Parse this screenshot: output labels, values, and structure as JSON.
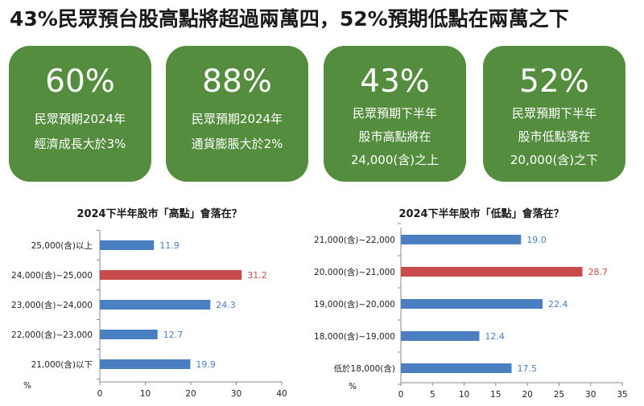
{
  "title": "43%民眾預台股高點將超過兩萬四，52%預期低點在兩萬之下",
  "colors": {
    "card": "#548d3e",
    "bar": "#4a7fc1",
    "highlight": "#c84b4b"
  },
  "cards": [
    {
      "value": "60%",
      "lines": [
        "民眾預期2024年",
        "經濟成長大於3%"
      ]
    },
    {
      "value": "88%",
      "lines": [
        "民眾預期2024年",
        "通貨膨脹大於2%"
      ]
    },
    {
      "value": "43%",
      "lines": [
        "民眾預期下半年",
        "股市高點將在",
        "24,000(含)之上"
      ]
    },
    {
      "value": "52%",
      "lines": [
        "民眾預期下半年",
        "股市低點落在",
        "20,000(含)之下"
      ]
    }
  ],
  "chart_data": [
    {
      "type": "bar",
      "orientation": "horizontal",
      "title": "2024下半年股市「高點」會落在？",
      "categories": [
        "25,000(含)以上",
        "24,000(含)~25,000",
        "23,000(含)~24,000",
        "22,000(含)~23,000",
        "21,000(含)以下"
      ],
      "values": [
        11.9,
        31.2,
        24.3,
        12.7,
        19.9
      ],
      "highlight_index": 1,
      "xlim": [
        0,
        40
      ],
      "xticks": [
        0,
        10,
        20,
        30,
        40
      ],
      "unit_label": "%"
    },
    {
      "type": "bar",
      "orientation": "horizontal",
      "title": "2024下半年股市「低點」會落在？",
      "categories": [
        "21,000(含)~22,000",
        "20,000(含)~21,000",
        "19,000(含)~20,000",
        "18,000(含)~19,000",
        "低於18,000(含)"
      ],
      "values": [
        19.0,
        28.7,
        22.4,
        12.4,
        17.5
      ],
      "highlight_index": 1,
      "xlim": [
        0,
        35
      ],
      "xticks": [
        0,
        5,
        10,
        15,
        20,
        25,
        30,
        35
      ],
      "unit_label": "%"
    }
  ]
}
